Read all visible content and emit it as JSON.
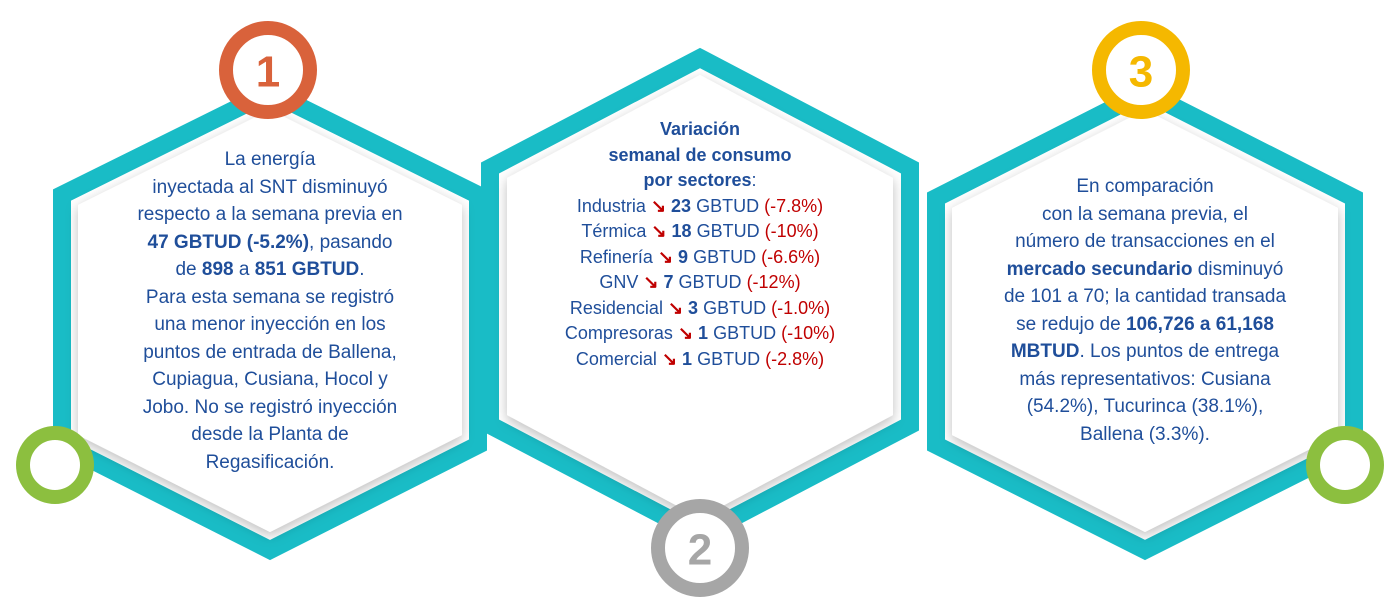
{
  "panel_1": {
    "number": "1",
    "text": [
      "La energía",
      "inyectada al SNT disminuyó",
      "respecto a la semana previa en",
      "47 GBTUD (-5.2%)",
      ", pasando",
      "de ",
      "898",
      " a ",
      "851 GBTUD",
      ".",
      "Para esta semana se registró",
      "una menor inyección en los",
      "puntos de entrada de Ballena,",
      "Cupiagua, Cusiana, Hocol y",
      "Jobo. No se registró inyección",
      "desde la Planta de",
      "Regasificación."
    ]
  },
  "panel_2": {
    "number": "2",
    "title": [
      "Variación",
      "semanal de consumo",
      "por sectores",
      ":"
    ],
    "rows": [
      {
        "sector": "Industria",
        "value": 23,
        "unit": "GBTUD",
        "change": "(-7.8%)"
      },
      {
        "sector": "Térmica",
        "value": 18,
        "unit": "GBTUD",
        "change": "(-10%)"
      },
      {
        "sector": "Refinería",
        "value": 9,
        "unit": "GBTUD",
        "change": "(-6.6%)"
      },
      {
        "sector": "GNV",
        "value": 7,
        "unit": "GBTUD",
        "change": "(-12%)"
      },
      {
        "sector": "Residencial",
        "value": 3,
        "unit": "GBTUD",
        "change": "(-1.0%)"
      },
      {
        "sector": "Compresoras",
        "value": 1,
        "unit": "GBTUD",
        "change": "(-10%)"
      },
      {
        "sector": "Comercial",
        "value": 1,
        "unit": "GBTUD",
        "change": "(-2.8%)"
      }
    ]
  },
  "panel_3": {
    "number": "3",
    "text": [
      "En comparación",
      "con la semana previa, el",
      "número de transacciones en el",
      "mercado secundario",
      " disminuyó",
      "de 101 a 70; la cantidad transada",
      "se redujo de ",
      "106,726  a 61,168",
      "MBTUD",
      ". Los puntos de entrega",
      "más representativos: Cusiana",
      "(54.2%), Tucurinca (38.1%),",
      "Ballena (3.3%)."
    ]
  }
}
